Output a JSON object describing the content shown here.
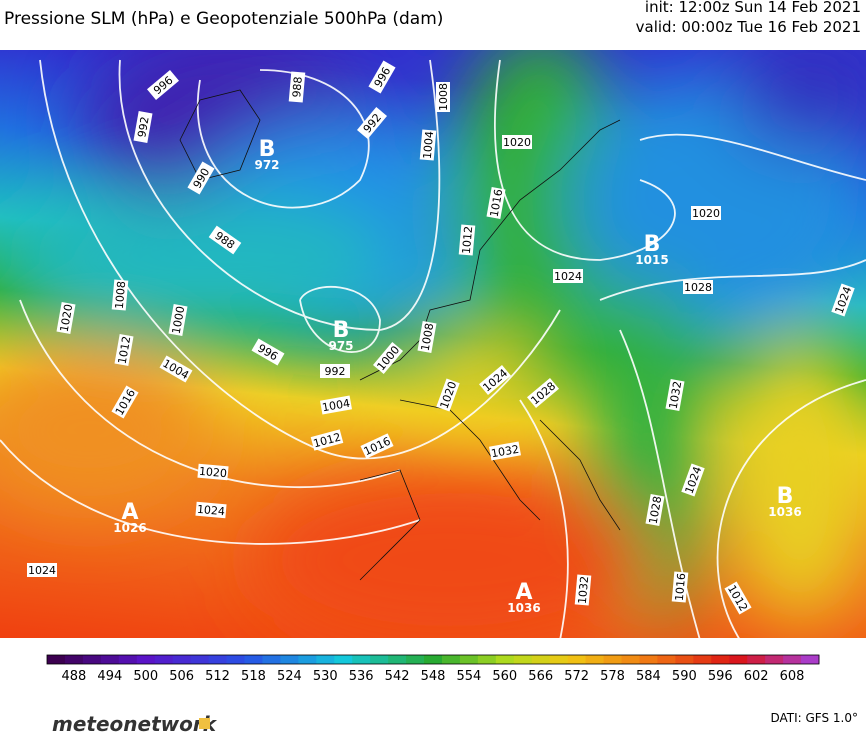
{
  "header": {
    "title": "Pressione SLM (hPa) e Geopotenziale 500hPa (dam)",
    "init": "init: 12:00z Sun 14 Feb 2021",
    "valid": "valid: 00:00z Tue 16 Feb 2021"
  },
  "isobar_labels": [
    "996",
    "992",
    "988",
    "996",
    "992",
    "1008",
    "1004",
    "1020",
    "1016",
    "1012",
    "990",
    "988",
    "1008",
    "1000",
    "996",
    "992",
    "1000",
    "1008",
    "1004",
    "1012",
    "1016",
    "1004",
    "1012",
    "1016",
    "1020",
    "1024",
    "1024",
    "1020",
    "1020",
    "1024",
    "1028",
    "1032",
    "1024",
    "1020",
    "1028",
    "1024",
    "1032",
    "1024",
    "1028",
    "1032",
    "1016",
    "1012"
  ],
  "centers": [
    {
      "letter": "B",
      "value": "972"
    },
    {
      "letter": "B",
      "value": "975"
    },
    {
      "letter": "B",
      "value": "1015"
    },
    {
      "letter": "A",
      "value": "1026"
    },
    {
      "letter": "A",
      "value": "1036"
    },
    {
      "letter": "B",
      "value": "1036"
    }
  ],
  "colorbar": {
    "labels": [
      488,
      494,
      500,
      506,
      512,
      518,
      524,
      530,
      536,
      542,
      548,
      554,
      560,
      566,
      572,
      578,
      584,
      590,
      596,
      602,
      608
    ]
  },
  "footer": {
    "logo": "meteonetwork",
    "source": "DATI: GFS 1.0°"
  }
}
